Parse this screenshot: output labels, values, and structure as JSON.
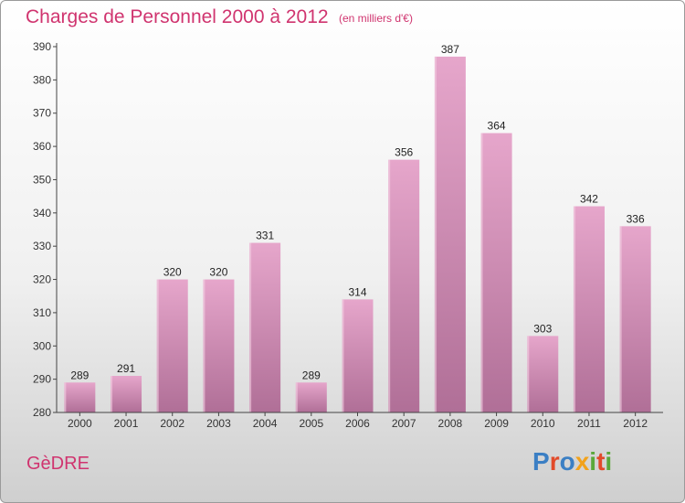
{
  "header": {
    "title": "Charges de Personnel 2000 à 2012",
    "subtitle": "(en milliers d'€)"
  },
  "footer": {
    "commune": "GèDRE",
    "logo_text": "Proxiti",
    "logo_letters": [
      {
        "ch": "P",
        "color": "#3b7fc4"
      },
      {
        "ch": "r",
        "color": "#e24a2a"
      },
      {
        "ch": "o",
        "color": "#3b7fc4"
      },
      {
        "ch": "x",
        "color": "#f2a21b"
      },
      {
        "ch": "i",
        "color": "#5aa83a"
      },
      {
        "ch": "t",
        "color": "#e24a2a"
      },
      {
        "ch": "i",
        "color": "#5aa83a"
      }
    ]
  },
  "colors": {
    "accent": "#d0346f",
    "bar_top": "#e6a6cb",
    "bar_bottom": "#b06f97",
    "axis": "#444444"
  },
  "chart_data": {
    "type": "bar",
    "title": "Charges de Personnel 2000 à 2012",
    "subtitle": "(en milliers d'€)",
    "categories": [
      "2000",
      "2001",
      "2002",
      "2003",
      "2004",
      "2005",
      "2006",
      "2007",
      "2008",
      "2009",
      "2010",
      "2011",
      "2012"
    ],
    "values": [
      289,
      291,
      320,
      320,
      331,
      289,
      314,
      356,
      387,
      364,
      303,
      342,
      336
    ],
    "value_labels": [
      "289",
      "291",
      "320",
      "320",
      "331",
      "289",
      "314",
      "356",
      "387",
      "364",
      "303",
      "342",
      "336"
    ],
    "ylim": [
      280,
      390
    ],
    "yticks": [
      280,
      290,
      300,
      310,
      320,
      330,
      340,
      350,
      360,
      370,
      380,
      390
    ],
    "xlabel": "",
    "ylabel": "",
    "grid": false,
    "legend": "none"
  }
}
